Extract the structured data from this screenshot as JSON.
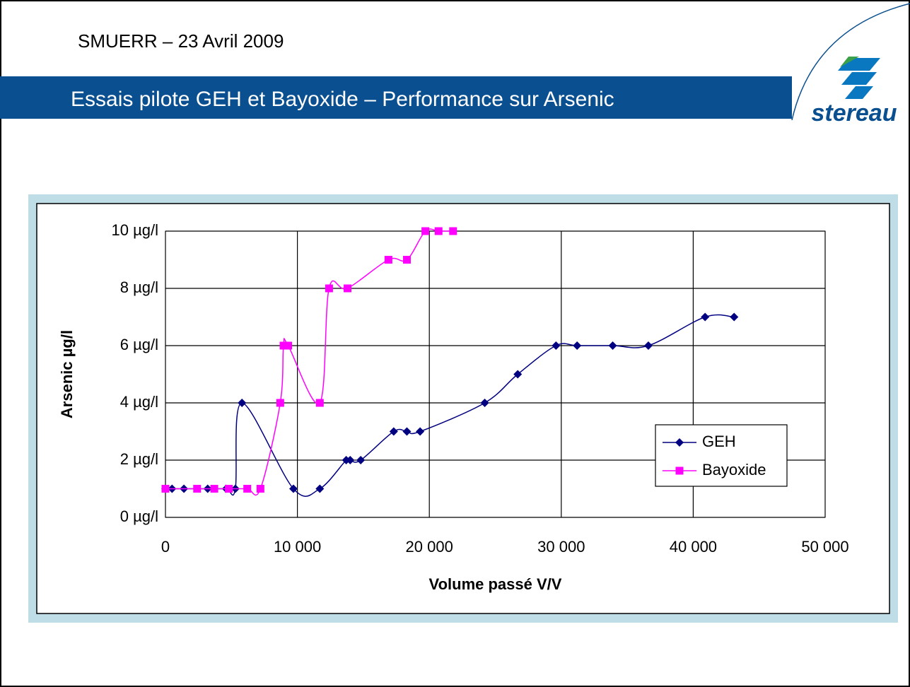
{
  "header": {
    "text": "SMUERR – 23 Avril 2009",
    "title": "Essais pilote GEH et Bayoxide – Performance sur Arsenic",
    "logo": "stereau"
  },
  "chart_data": {
    "type": "line",
    "x_label": "Volume passé V/V",
    "y_label": "Arsenic µg/l",
    "xlim": [
      0,
      50000
    ],
    "ylim": [
      0,
      10
    ],
    "xticks": [
      0,
      {
        "value": 10000,
        "label": "10 000"
      },
      {
        "value": 20000,
        "label": "20 000"
      },
      {
        "value": 30000,
        "label": "30 000"
      },
      {
        "value": 40000,
        "label": "40 000"
      },
      {
        "value": 50000,
        "label": "50 000"
      }
    ],
    "yticks": [
      {
        "value": 0,
        "label": "0 µg/l"
      },
      {
        "value": 2,
        "label": "2 µg/l"
      },
      {
        "value": 4,
        "label": "4 µg/l"
      },
      {
        "value": 6,
        "label": "6 µg/l"
      },
      {
        "value": 8,
        "label": "8 µg/l"
      },
      {
        "value": 10,
        "label": "10 µg/l"
      }
    ],
    "grid": true,
    "legend": "lower right",
    "smooth": true,
    "series": [
      {
        "name": "GEH",
        "color": "#000080",
        "marker": "diamond",
        "x": [
          0,
          500,
          1400,
          3200,
          4600,
          5300,
          5800,
          9700,
          11700,
          13700,
          14000,
          14800,
          17300,
          18300,
          19300,
          24200,
          26700,
          29600,
          31200,
          33900,
          36600,
          40900,
          43100
        ],
        "values": [
          1,
          1,
          1,
          1,
          1,
          1,
          4,
          1,
          1,
          2,
          2,
          2,
          3,
          3,
          3,
          4,
          5,
          6,
          6,
          6,
          6,
          7,
          7
        ]
      },
      {
        "name": "Bayoxide",
        "color": "#ff00ff",
        "marker": "square",
        "x": [
          0,
          2400,
          3700,
          4800,
          6200,
          7200,
          8700,
          8950,
          9300,
          11700,
          12400,
          13800,
          16900,
          18300,
          19700,
          20700,
          21800
        ],
        "values": [
          1,
          1,
          1,
          1,
          1,
          1,
          4,
          6,
          6,
          4,
          8,
          8,
          9,
          9,
          10,
          10,
          10
        ]
      }
    ]
  }
}
